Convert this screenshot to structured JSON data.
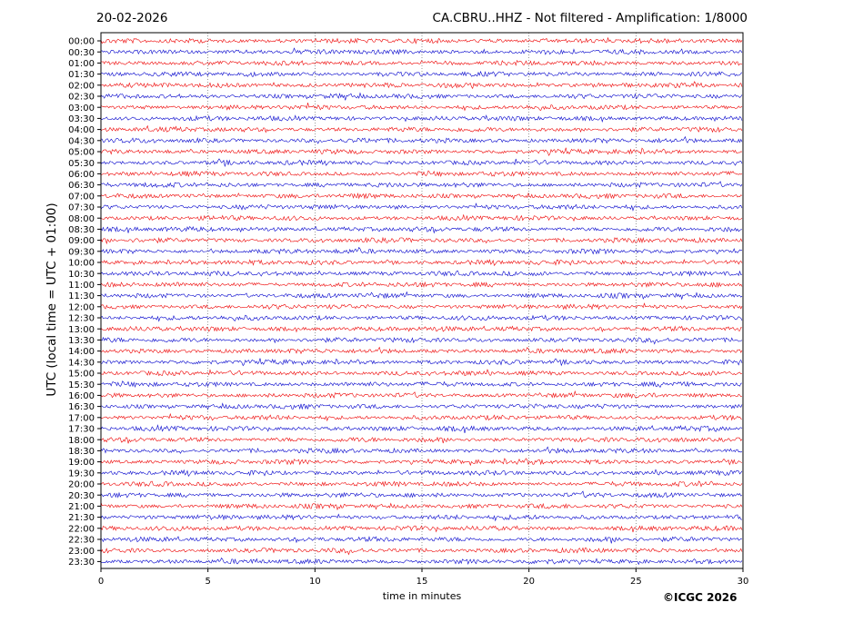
{
  "header": {
    "date": "20-02-2026",
    "title": "CA.CBRU..HHZ - Not filtered - Amplification: 1/8000"
  },
  "footer": {
    "copyright": "©ICGC 2026"
  },
  "colors": {
    "odd_trace": "#ee0000",
    "even_trace": "#0000cc",
    "grid": "#555555",
    "axes": "#000000"
  },
  "chart_data": {
    "type": "line",
    "title": "CA.CBRU..HHZ - Not filtered - Amplification: 1/8000",
    "xlabel": "time in minutes",
    "ylabel": "UTC (local time = UTC + 01:00)",
    "xlim": [
      0,
      30
    ],
    "x_ticks": [
      0,
      5,
      10,
      15,
      20,
      25,
      30
    ],
    "grid": true,
    "grid_style": "dotted vertical at each x tick",
    "trace_colors_alternate": [
      "red",
      "blue"
    ],
    "rows": [
      "00:00",
      "00:30",
      "01:00",
      "01:30",
      "02:00",
      "02:30",
      "03:00",
      "03:30",
      "04:00",
      "04:30",
      "05:00",
      "05:30",
      "06:00",
      "06:30",
      "07:00",
      "07:30",
      "08:00",
      "08:30",
      "09:00",
      "09:30",
      "10:00",
      "10:30",
      "11:00",
      "11:30",
      "12:00",
      "12:30",
      "13:00",
      "13:30",
      "14:00",
      "14:30",
      "15:00",
      "15:30",
      "16:00",
      "16:30",
      "17:00",
      "17:30",
      "18:00",
      "18:30",
      "19:00",
      "19:30",
      "20:00",
      "20:30",
      "21:00",
      "21:30",
      "22:00",
      "22:30",
      "23:00",
      "23:30"
    ],
    "signal": "continuous seismic background noise, no distinct event"
  }
}
